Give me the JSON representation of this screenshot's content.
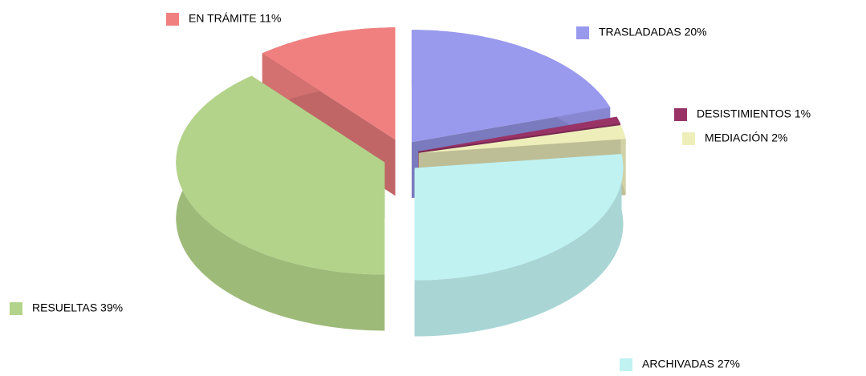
{
  "chart_data": {
    "type": "pie",
    "values": [
      20,
      1,
      2,
      27,
      39,
      11
    ],
    "value_labels": [
      "TRASLADADAS 20%",
      "DESISTIMIENTOS 1%",
      "MEDIACIÓN 2%",
      "ARCHIVADAS 27%",
      "RESUELTAS 39%",
      "EN TRÁMITE 11%"
    ],
    "colors": [
      "#9999ee",
      "#993366",
      "#eeeebb",
      "#c0f2f2",
      "#b3d38a",
      "#f08080"
    ],
    "exploded": true,
    "three_d": true
  }
}
